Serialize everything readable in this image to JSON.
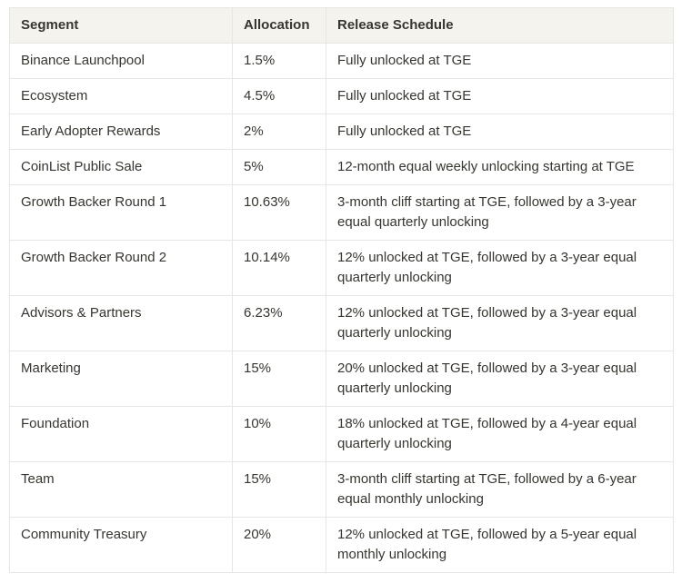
{
  "colors": {
    "header_background": "#f4f3ee",
    "border": "#e7e6e2",
    "text": "#37352f",
    "row_background": "#ffffff"
  },
  "table": {
    "headers": {
      "segment": "Segment",
      "allocation": "Allocation",
      "schedule": "Release Schedule"
    },
    "rows": [
      {
        "segment": "Binance Launchpool",
        "allocation": "1.5%",
        "schedule": "Fully unlocked at TGE"
      },
      {
        "segment": "Ecosystem",
        "allocation": "4.5%",
        "schedule": "Fully unlocked at TGE"
      },
      {
        "segment": "Early Adopter Rewards",
        "allocation": "2%",
        "schedule": "Fully unlocked at TGE"
      },
      {
        "segment": "CoinList Public Sale",
        "allocation": "5%",
        "schedule": "12-month equal weekly unlocking starting at TGE"
      },
      {
        "segment": "Growth Backer Round 1",
        "allocation": "10.63%",
        "schedule": "3-month cliff starting at TGE, followed by a 3-year equal quarterly unlocking"
      },
      {
        "segment": "Growth Backer Round 2",
        "allocation": "10.14%",
        "schedule": "12% unlocked at TGE, followed by a 3-year equal quarterly unlocking"
      },
      {
        "segment": "Advisors & Partners",
        "allocation": "6.23%",
        "schedule": "12% unlocked at TGE, followed by a 3-year equal quarterly unlocking"
      },
      {
        "segment": "Marketing",
        "allocation": "15%",
        "schedule": "20% unlocked at TGE, followed by a 3-year equal quarterly unlocking"
      },
      {
        "segment": "Foundation",
        "allocation": "10%",
        "schedule": "18% unlocked at TGE, followed by a 4-year equal quarterly unlocking"
      },
      {
        "segment": "Team",
        "allocation": "15%",
        "schedule": "3-month cliff starting at TGE, followed by a 6-year equal monthly unlocking"
      },
      {
        "segment": "Community Treasury",
        "allocation": "20%",
        "schedule": "12% unlocked at TGE, followed by a 5-year equal monthly unlocking"
      }
    ]
  },
  "chart_data": {
    "type": "table",
    "columns": [
      "Segment",
      "Allocation",
      "Release Schedule"
    ],
    "rows": [
      [
        "Binance Launchpool",
        "1.5%",
        "Fully unlocked at TGE"
      ],
      [
        "Ecosystem",
        "4.5%",
        "Fully unlocked at TGE"
      ],
      [
        "Early Adopter Rewards",
        "2%",
        "Fully unlocked at TGE"
      ],
      [
        "CoinList Public Sale",
        "5%",
        "12-month equal weekly unlocking starting at TGE"
      ],
      [
        "Growth Backer Round 1",
        "10.63%",
        "3-month cliff starting at TGE, followed by a 3-year equal quarterly unlocking"
      ],
      [
        "Growth Backer Round 2",
        "10.14%",
        "12% unlocked at TGE, followed by a 3-year equal quarterly unlocking"
      ],
      [
        "Advisors & Partners",
        "6.23%",
        "12% unlocked at TGE, followed by a 3-year equal quarterly unlocking"
      ],
      [
        "Marketing",
        "15%",
        "20% unlocked at TGE, followed by a 3-year equal quarterly unlocking"
      ],
      [
        "Foundation",
        "10%",
        "18% unlocked at TGE, followed by a 4-year equal quarterly unlocking"
      ],
      [
        "Team",
        "15%",
        "3-month cliff starting at TGE, followed by a 6-year equal monthly unlocking"
      ],
      [
        "Community Treasury",
        "20%",
        "12% unlocked at TGE, followed by a 5-year equal monthly unlocking"
      ]
    ],
    "allocation_values_percent": [
      1.5,
      4.5,
      2,
      5,
      10.63,
      10.14,
      6.23,
      15,
      10,
      15,
      20
    ]
  }
}
